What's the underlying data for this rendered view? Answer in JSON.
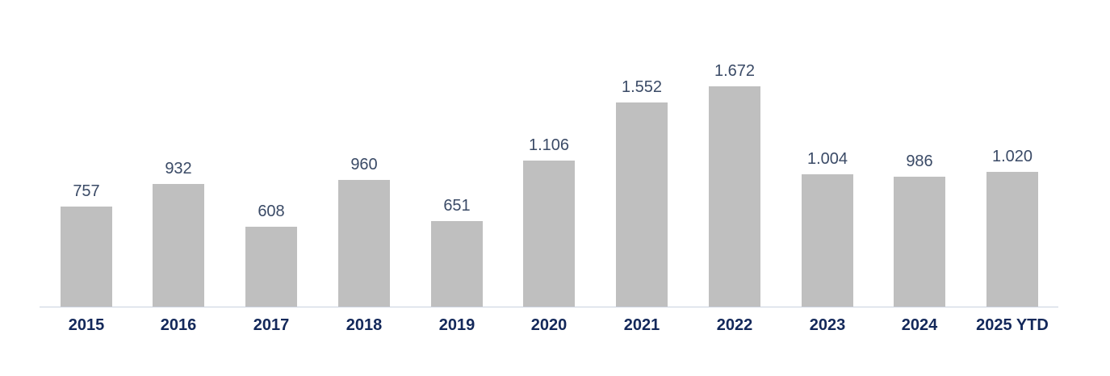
{
  "chart_data": {
    "type": "bar",
    "title": "",
    "xlabel": "",
    "ylabel": "",
    "categories": [
      "2015",
      "2016",
      "2017",
      "2018",
      "2019",
      "2020",
      "2021",
      "2022",
      "2023",
      "2024",
      "2025 YTD"
    ],
    "values": [
      757,
      932,
      608,
      960,
      651,
      1106,
      1552,
      1672,
      1004,
      986,
      1020
    ],
    "value_labels": [
      "757",
      "932",
      "608",
      "960",
      "651",
      "1.106",
      "1.552",
      "1.672",
      "1.004",
      "986",
      "1.020"
    ],
    "ylim": [
      0,
      1800
    ],
    "grid": false,
    "legend": null,
    "colors": {
      "bar": "#bfbfbf",
      "value_label": "#3a4a66",
      "category_label": "#13285a",
      "axis": "#c9d1de"
    }
  }
}
